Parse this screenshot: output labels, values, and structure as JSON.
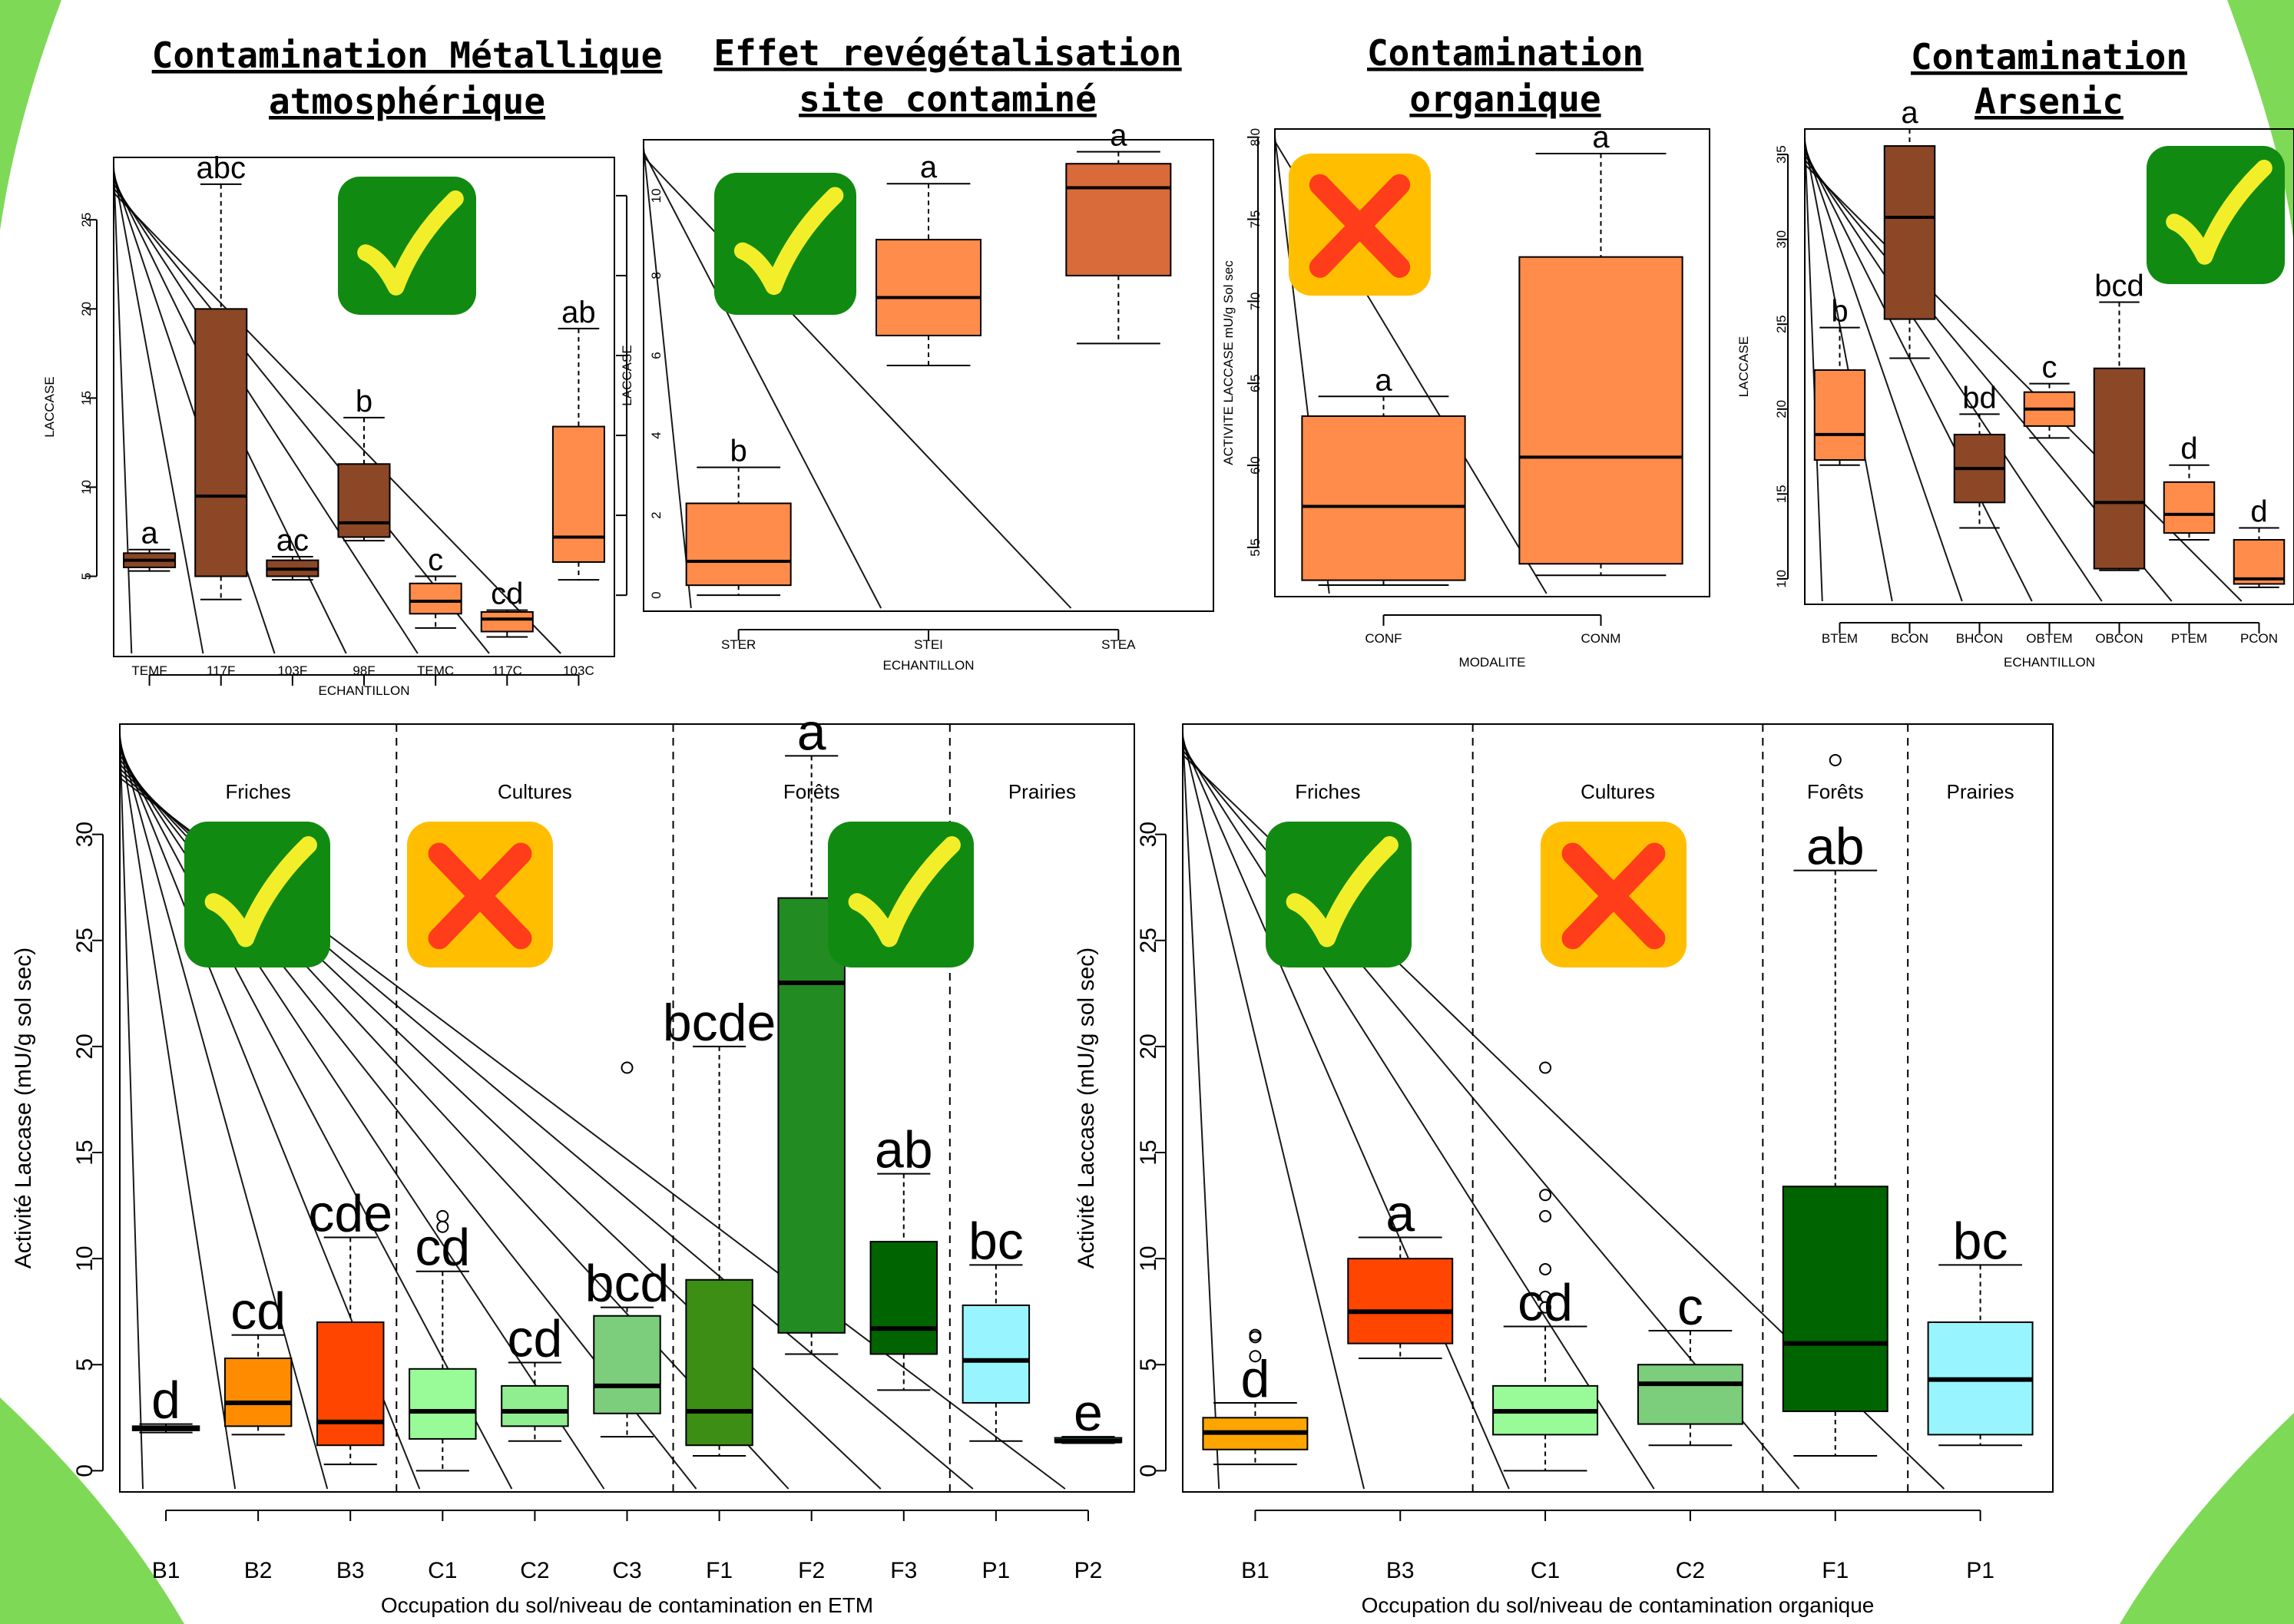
{
  "colors": {
    "background_green": "#7ed957",
    "check_badge": "#118a11",
    "cross_badge": "#ffbf00",
    "check_mark": "#f2ef2a",
    "cross_mark": "#ff3d1a"
  },
  "badge_icons": [
    "check-icon",
    "cross-icon"
  ],
  "chart_data": [
    {
      "id": "c1",
      "type": "boxplot",
      "title": [
        "Contamination Métallique",
        "atmosphérique"
      ],
      "xlabel": "ECHANTILLON",
      "ylabel": "LACCASE",
      "ylim": [
        0.5,
        28.5
      ],
      "yticks": [
        5,
        10,
        15,
        20,
        25
      ],
      "badge": "check",
      "categories": [
        "TEMF",
        "117F",
        "103F",
        "98F",
        "TEMC",
        "117C",
        "103C"
      ],
      "boxes": [
        {
          "min": 5.3,
          "q1": 5.5,
          "median": 5.9,
          "q3": 6.3,
          "max": 6.5,
          "color": "#8b4726",
          "letter": "a"
        },
        {
          "min": 3.7,
          "q1": 5.0,
          "median": 9.5,
          "q3": 20.0,
          "max": 27.0,
          "color": "#8b4726",
          "letter": "abc"
        },
        {
          "min": 4.8,
          "q1": 5.0,
          "median": 5.4,
          "q3": 5.9,
          "max": 6.1,
          "color": "#8b4726",
          "letter": "ac"
        },
        {
          "min": 7.0,
          "q1": 7.2,
          "median": 8.0,
          "q3": 11.3,
          "max": 13.9,
          "color": "#8b4726",
          "letter": "b"
        },
        {
          "min": 2.1,
          "q1": 2.9,
          "median": 3.6,
          "q3": 4.6,
          "max": 5.0,
          "color": "#ff8c4a",
          "letter": "c"
        },
        {
          "min": 1.6,
          "q1": 1.9,
          "median": 2.6,
          "q3": 3.0,
          "max": 3.1,
          "color": "#ff8c4a",
          "letter": "cd"
        },
        {
          "min": 4.8,
          "q1": 5.8,
          "median": 7.2,
          "q3": 13.4,
          "max": 18.9,
          "color": "#ff8c4a",
          "letter": "ab"
        }
      ]
    },
    {
      "id": "c2",
      "type": "boxplot",
      "title": [
        "Effet revégétalisation",
        "site contaminé"
      ],
      "xlabel": "ECHANTILLON",
      "ylabel": "LACCASE",
      "ylim": [
        -0.4,
        11.4
      ],
      "yticks": [
        0,
        2,
        4,
        6,
        8,
        10
      ],
      "badge": "check",
      "categories": [
        "STER",
        "STEI",
        "STEA"
      ],
      "boxes": [
        {
          "min": 0.0,
          "q1": 0.25,
          "median": 0.85,
          "q3": 2.3,
          "max": 3.2,
          "color": "#ff8c4a",
          "letter": "b"
        },
        {
          "min": 5.75,
          "q1": 6.5,
          "median": 7.45,
          "q3": 8.9,
          "max": 10.3,
          "color": "#ff8c4a",
          "letter": "a"
        },
        {
          "min": 6.3,
          "q1": 8.0,
          "median": 10.2,
          "q3": 10.8,
          "max": 11.1,
          "color": "#d96a3a",
          "letter": "a"
        }
      ]
    },
    {
      "id": "c3",
      "type": "boxplot",
      "title": [
        "Contamination",
        "organique"
      ],
      "xlabel": "MODALITE",
      "ylabel": "ACTIVITE LACCASE mU/g Sol sec",
      "ylim": [
        5.2,
        8.05
      ],
      "yticks": [
        5.5,
        6.0,
        6.5,
        7.0,
        7.5,
        8.0
      ],
      "badge": "cross",
      "categories": [
        "CONF",
        "CONM"
      ],
      "boxes": [
        {
          "min": 5.27,
          "q1": 5.3,
          "median": 5.75,
          "q3": 6.3,
          "max": 6.42,
          "color": "#ff8c4a",
          "letter": "a"
        },
        {
          "min": 5.33,
          "q1": 5.4,
          "median": 6.05,
          "q3": 7.27,
          "max": 7.9,
          "color": "#ff8c4a",
          "letter": "a"
        }
      ]
    },
    {
      "id": "c4",
      "type": "boxplot",
      "title": [
        "Contamination",
        "Arsenic"
      ],
      "xlabel": "ECHANTILLON",
      "ylabel": "LACCASE",
      "ylim": [
        0.85,
        3.65
      ],
      "yticks": [
        1.0,
        1.5,
        2.0,
        2.5,
        3.0,
        3.5
      ],
      "badge": "check",
      "categories": [
        "BTEM",
        "BCON",
        "BHCON",
        "OBTEM",
        "OBCON",
        "PTEM",
        "PCON"
      ],
      "boxes": [
        {
          "min": 1.67,
          "q1": 1.7,
          "median": 1.85,
          "q3": 2.23,
          "max": 2.48,
          "color": "#ff8c4a",
          "letter": "b"
        },
        {
          "min": 2.3,
          "q1": 2.53,
          "median": 3.13,
          "q3": 3.55,
          "max": 3.65,
          "color": "#8b4726",
          "letter": "a"
        },
        {
          "min": 1.3,
          "q1": 1.45,
          "median": 1.65,
          "q3": 1.85,
          "max": 1.97,
          "color": "#8b4726",
          "letter": "bd"
        },
        {
          "min": 1.83,
          "q1": 1.9,
          "median": 2.0,
          "q3": 2.1,
          "max": 2.15,
          "color": "#ff8c4a",
          "letter": "c"
        },
        {
          "min": 1.05,
          "q1": 1.06,
          "median": 1.45,
          "q3": 2.24,
          "max": 2.63,
          "color": "#8b4726",
          "letter": "bcd"
        },
        {
          "min": 1.23,
          "q1": 1.27,
          "median": 1.38,
          "q3": 1.57,
          "max": 1.67,
          "color": "#ff8c4a",
          "letter": "d"
        },
        {
          "min": 0.95,
          "q1": 0.97,
          "median": 1.0,
          "q3": 1.23,
          "max": 1.3,
          "color": "#ff8c4a",
          "letter": "d"
        }
      ]
    },
    {
      "id": "c5",
      "type": "boxplot",
      "xlabel": "Occupation du sol/niveau de contamination en ETM",
      "ylabel": "Activité Laccase (mU/g sol sec)",
      "ylim": [
        -1.0,
        35.2
      ],
      "yticks": [
        0,
        5,
        10,
        15,
        20,
        25,
        30
      ],
      "groups": [
        {
          "label": "Friches",
          "badge": "check",
          "boxes": [
            0,
            1,
            2
          ]
        },
        {
          "label": "Cultures",
          "badge": "cross",
          "boxes": [
            3,
            4,
            5
          ]
        },
        {
          "label": "Forêts",
          "badge": "none",
          "boxes": [
            6,
            7,
            8
          ]
        },
        {
          "label": "Prairies",
          "badge": "check",
          "boxes": [
            9,
            10
          ]
        }
      ],
      "categories": [
        "B1",
        "B2",
        "B3",
        "C1",
        "C2",
        "C3",
        "F1",
        "F2",
        "F3",
        "P1",
        "P2"
      ],
      "boxes": [
        {
          "min": 1.8,
          "q1": 1.9,
          "median": 2.0,
          "q3": 2.1,
          "max": 2.2,
          "color": "#ffa500",
          "letter": "d"
        },
        {
          "min": 1.7,
          "q1": 2.1,
          "median": 3.2,
          "q3": 5.3,
          "max": 6.4,
          "color": "#ff8c00",
          "letter": "cd"
        },
        {
          "min": 0.3,
          "q1": 1.2,
          "median": 2.3,
          "q3": 7.0,
          "max": 11.0,
          "color": "#ff4500",
          "letter": "cde"
        },
        {
          "min": 0.0,
          "q1": 1.5,
          "median": 2.8,
          "q3": 4.8,
          "max": 9.4,
          "color": "#98fb98",
          "letter": "cd",
          "outliers": [
            11.5,
            12.0
          ]
        },
        {
          "min": 1.4,
          "q1": 2.1,
          "median": 2.8,
          "q3": 4.0,
          "max": 5.1,
          "color": "#90ee90",
          "letter": "cd"
        },
        {
          "min": 1.6,
          "q1": 2.7,
          "median": 4.0,
          "q3": 7.3,
          "max": 7.7,
          "color": "#7ccd7c",
          "letter": "bcd",
          "outliers": [
            19.0
          ]
        },
        {
          "min": 0.7,
          "q1": 1.2,
          "median": 2.8,
          "q3": 9.0,
          "max": 20.0,
          "color": "#3c8e14",
          "letter": "bcde"
        },
        {
          "min": 5.5,
          "q1": 6.5,
          "median": 23.0,
          "q3": 27.0,
          "max": 33.7,
          "color": "#228b22",
          "letter": "a"
        },
        {
          "min": 3.8,
          "q1": 5.5,
          "median": 6.7,
          "q3": 10.8,
          "max": 14.0,
          "color": "#006400",
          "letter": "ab",
          "outliers": [
            27.0
          ]
        },
        {
          "min": 1.4,
          "q1": 3.2,
          "median": 5.2,
          "q3": 7.8,
          "max": 9.7,
          "color": "#98f5ff",
          "letter": "bc"
        },
        {
          "min": 1.3,
          "q1": 1.35,
          "median": 1.4,
          "q3": 1.55,
          "max": 1.6,
          "color": "#98f5ff",
          "letter": "e"
        }
      ]
    },
    {
      "id": "c6",
      "type": "boxplot",
      "xlabel": "Occupation du sol/niveau de contamination organique",
      "ylabel": "Activité Laccase (mU/g sol sec)",
      "ylim": [
        -1.0,
        35.2
      ],
      "yticks": [
        0,
        5,
        10,
        15,
        20,
        25,
        30
      ],
      "groups": [
        {
          "label": "Friches",
          "badge": "check",
          "boxes": [
            0,
            1
          ]
        },
        {
          "label": "Cultures",
          "badge": "cross",
          "boxes": [
            2,
            3
          ]
        },
        {
          "label": "Forêts",
          "badge": "none",
          "boxes": [
            4
          ]
        },
        {
          "label": "Prairies",
          "badge": "none",
          "boxes": [
            5
          ]
        }
      ],
      "categories": [
        "B1",
        "B3",
        "C1",
        "C2",
        "F1",
        "P1"
      ],
      "boxes": [
        {
          "min": 0.3,
          "q1": 1.0,
          "median": 1.8,
          "q3": 2.5,
          "max": 3.2,
          "color": "#ffa500",
          "letter": "d",
          "outliers": [
            5.4,
            6.3,
            6.4
          ]
        },
        {
          "min": 5.3,
          "q1": 6.0,
          "median": 7.5,
          "q3": 10.0,
          "max": 11.0,
          "color": "#ff4500",
          "letter": "a"
        },
        {
          "min": 0.0,
          "q1": 1.7,
          "median": 2.8,
          "q3": 4.0,
          "max": 6.8,
          "color": "#98fb98",
          "letter": "cd",
          "outliers": [
            7.7,
            8.2,
            9.5,
            12.0,
            13.0,
            19.0
          ]
        },
        {
          "min": 1.2,
          "q1": 2.2,
          "median": 4.1,
          "q3": 5.0,
          "max": 6.6,
          "color": "#7ccd7c",
          "letter": "c"
        },
        {
          "min": 0.7,
          "q1": 2.8,
          "median": 6.0,
          "q3": 13.4,
          "max": 28.3,
          "color": "#006400",
          "letter": "ab",
          "outliers": [
            33.5
          ]
        },
        {
          "min": 1.2,
          "q1": 1.7,
          "median": 4.3,
          "q3": 7.0,
          "max": 9.7,
          "color": "#98f5ff",
          "letter": "bc"
        }
      ]
    }
  ]
}
